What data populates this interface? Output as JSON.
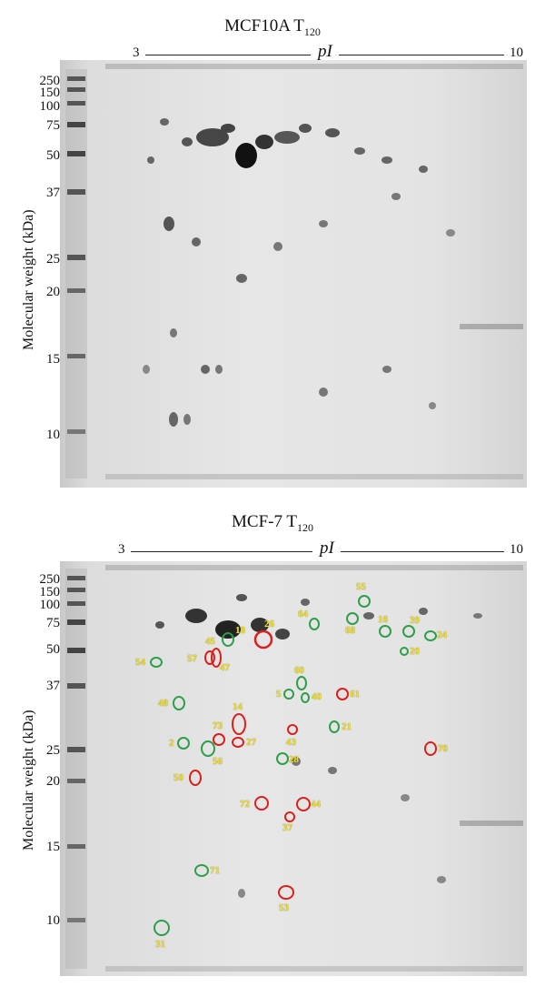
{
  "panels": [
    {
      "title_main": "MCF10A T",
      "title_sub": "120",
      "pi_label": "pI",
      "pi_min": "3",
      "pi_max": "10",
      "ylabel": "Molecular weight (kDa)",
      "ticks": [
        "250",
        "150",
        "100",
        "75",
        "50",
        "37",
        "25",
        "20",
        "15",
        "10"
      ]
    },
    {
      "title_main": "MCF-7 T",
      "title_sub": "120",
      "pi_label": "pI",
      "pi_min": "3",
      "pi_max": "10",
      "ylabel": "Molecular weight (kDa)",
      "ticks": [
        "250",
        "150",
        "100",
        "75",
        "50",
        "37",
        "25",
        "20",
        "15",
        "10"
      ],
      "spots": [
        {
          "id": "55",
          "color": "green"
        },
        {
          "id": "64",
          "color": "green"
        },
        {
          "id": "68",
          "color": "green"
        },
        {
          "id": "16",
          "color": "green"
        },
        {
          "id": "39",
          "color": "green"
        },
        {
          "id": "24",
          "color": "green"
        },
        {
          "id": "20",
          "color": "green"
        },
        {
          "id": "18",
          "color": "green"
        },
        {
          "id": "26",
          "color": "red"
        },
        {
          "id": "45",
          "color": "red"
        },
        {
          "id": "57",
          "color": "red"
        },
        {
          "id": "47",
          "color": "red"
        },
        {
          "id": "54",
          "color": "green"
        },
        {
          "id": "60",
          "color": "green"
        },
        {
          "id": "5",
          "color": "green"
        },
        {
          "id": "40",
          "color": "green"
        },
        {
          "id": "61",
          "color": "red"
        },
        {
          "id": "48",
          "color": "green"
        },
        {
          "id": "14",
          "color": "red"
        },
        {
          "id": "73",
          "color": "red"
        },
        {
          "id": "27",
          "color": "red"
        },
        {
          "id": "43",
          "color": "red"
        },
        {
          "id": "21",
          "color": "green"
        },
        {
          "id": "2",
          "color": "green"
        },
        {
          "id": "56",
          "color": "green"
        },
        {
          "id": "70",
          "color": "red"
        },
        {
          "id": "28",
          "color": "green"
        },
        {
          "id": "50",
          "color": "red"
        },
        {
          "id": "72",
          "color": "red"
        },
        {
          "id": "44",
          "color": "red"
        },
        {
          "id": "37",
          "color": "red"
        },
        {
          "id": "71",
          "color": "green"
        },
        {
          "id": "53",
          "color": "red"
        },
        {
          "id": "31",
          "color": "green"
        }
      ]
    }
  ],
  "colors": {
    "green": "#2e9e4a",
    "red": "#d8201c",
    "label": "#f0e02a"
  }
}
